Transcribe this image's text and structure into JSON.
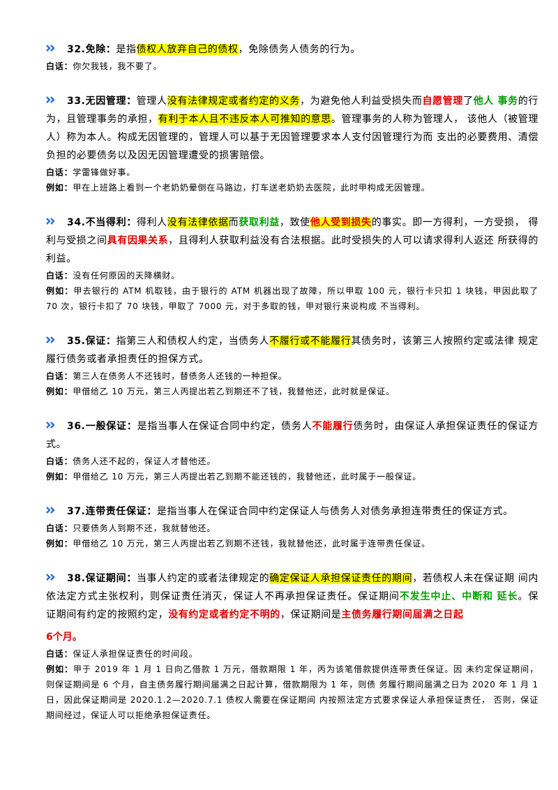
{
  "sections": [
    {
      "title": "32.免除：",
      "body": [
        {
          "text": "是指"
        },
        {
          "text": "债权人放弃自己的债权",
          "background": "#ffff00"
        },
        {
          "text": "，免除债务人债务的行为。"
        }
      ],
      "notes": [
        {
          "label": "白话：",
          "text": "你欠我钱，我不要了。"
        }
      ]
    },
    {
      "title": "33.无因管理：",
      "body": [
        {
          "text": "管理人"
        },
        {
          "text": "没有法律规定或者约定的义务",
          "background": "#ffff00"
        },
        {
          "text": "，为避免他人利益受损失而"
        },
        {
          "text": "自愿管理",
          "color": "#e00000"
        },
        {
          "text": "了"
        },
        {
          "text": "他人 事务",
          "color": "#00a000"
        },
        {
          "text": "的行为，且管理事务的承担，"
        },
        {
          "text": "有利于本人且不违反本人可推知的意思",
          "background": "#ffff00"
        },
        {
          "text": "。管理事务的人称为管理人， 该他人（被管理人）称为本人。构成无因管理的，管理人可以基于无因管理要求本人支付因管理行为而 支出的必要费用、清偿负担的必要债务以及因无因管理遭受的损害赔偿。"
        }
      ],
      "notes": [
        {
          "label": "白话：",
          "text": "学雷锋做好事。"
        },
        {
          "label": "例如：",
          "text": "甲在上班路上看到一个老奶奶晕倒在马路边，打车送老奶奶去医院，此时甲构成无因管理。"
        }
      ]
    },
    {
      "title": "34.不当得利：",
      "body": [
        {
          "text": "得利人"
        },
        {
          "text": "没有法律依据",
          "background": "#ffff00"
        },
        {
          "text": "而"
        },
        {
          "text": "获取利益",
          "color": "#00a000"
        },
        {
          "text": "，致使"
        },
        {
          "text": "他人受到损失",
          "color": "#e00000",
          "background": "#ffff00"
        },
        {
          "text": "的事实。即一方得利，一方受损， 得利与受损之间"
        },
        {
          "text": "具有因果关系",
          "color": "#e00000"
        },
        {
          "text": "，且得利人获取利益没有合法根据。此时受损失的人可以请求得利人返还 所获得的利益。"
        }
      ],
      "notes": [
        {
          "label": "白话：",
          "text": "没有任何原因的天降横财。"
        },
        {
          "label": "例如：",
          "text": "甲去银行的 ATM 机取钱，由于银行的 ATM 机器出现了故障，所以甲取 100 元，银行卡只扣 1 块钱，甲因此取了 70 次，银行卡扣了 70 块钱，甲取了 7000 元，对于多取的钱，甲对银行来说构成 不当得利。"
        }
      ]
    },
    {
      "title": "35.保证：",
      "body": [
        {
          "text": "指第三人和债权人约定，当债务人"
        },
        {
          "text": "不履行或不能履行",
          "background": "#ffff00"
        },
        {
          "text": "其债务时，该第三人按照约定或法律 规定履行债务或者承担责任的担保方式。"
        }
      ],
      "notes": [
        {
          "label": "白话：",
          "text": "第三人在债务人不还钱时，替债务人还钱的一种担保。"
        },
        {
          "label": "例如：",
          "text": "甲借给乙 10 万元，第三人丙提出若乙到期还不了钱，我替他还，此时就是保证。"
        }
      ]
    },
    {
      "title": "36.一般保证：",
      "body": [
        {
          "text": "是指当事人在保证合同中约定，债务人"
        },
        {
          "text": "不能履行",
          "color": "#e00000"
        },
        {
          "text": "债务时，由保证人承担保证责任的保证方式。"
        }
      ],
      "notes": [
        {
          "label": "白话：",
          "text": "债务人还不起的，保证人才替他还。"
        },
        {
          "label": "例如：",
          "text": "甲借给乙 10 万元，第三人丙提出若乙到期不能还钱的，我替他还，此时属于一般保证。"
        }
      ]
    },
    {
      "title": "37.连带责任保证：",
      "body": [
        {
          "text": "是指当事人在保证合同中约定保证人与债务人对债务承担连带责任的保证方式。"
        }
      ],
      "notes": [
        {
          "label": "白话：",
          "text": "只要债务人到期不还，我就替他还。"
        },
        {
          "label": "例如：",
          "text": "甲借给乙 10 万元，第三人丙提出若乙到期不还钱，我就替他还，此时属于连带责任保证。"
        }
      ]
    },
    {
      "title": "38.保证期间：",
      "body": [
        {
          "text": "当事人约定的或者法律规定的"
        },
        {
          "text": "确定保证人承担保证责任的期间",
          "background": "#ffff00"
        },
        {
          "text": "，若债权人未在保证期 间内依法定方式主张权利，则保证责任消灭，保证人不再承担保证责任。保证期间"
        },
        {
          "text": "不发生中止、中断和 延长",
          "color": "#00a000"
        },
        {
          "text": "。保证期间有约定的按照约定，"
        },
        {
          "text": "没有约定或者约定不明的",
          "color": "#e00000"
        },
        {
          "text": "，保证期间是"
        },
        {
          "text": "主债务履行期间届满之日起",
          "color": "#e00000"
        }
      ],
      "tail": {
        "text": "6个月。",
        "color": "#e00000"
      },
      "notes": [
        {
          "label": "白话：",
          "text": "保证人承担保证责任的时间段。"
        },
        {
          "label": "例如：",
          "text": "甲于 2019 年 1 月 1 日向乙借款 1 万元，借款期限 1 年，丙为该笔借款提供连带责任保证。因 未约定保证期间，则保证期间是 6 个月，自主债务履行期间届满之日起计算，借款期限为 1 年，则债 务履行期间届满之日为 2020 年 1 月 1 日，因此保证期间是 2020.1.2—2020.7.1 债权人需要在保证期间 内按照法定方式要求保证人承担保证责任， 否则，保证期间经过，保证人可以拒绝承担保证责任。"
        }
      ]
    }
  ]
}
